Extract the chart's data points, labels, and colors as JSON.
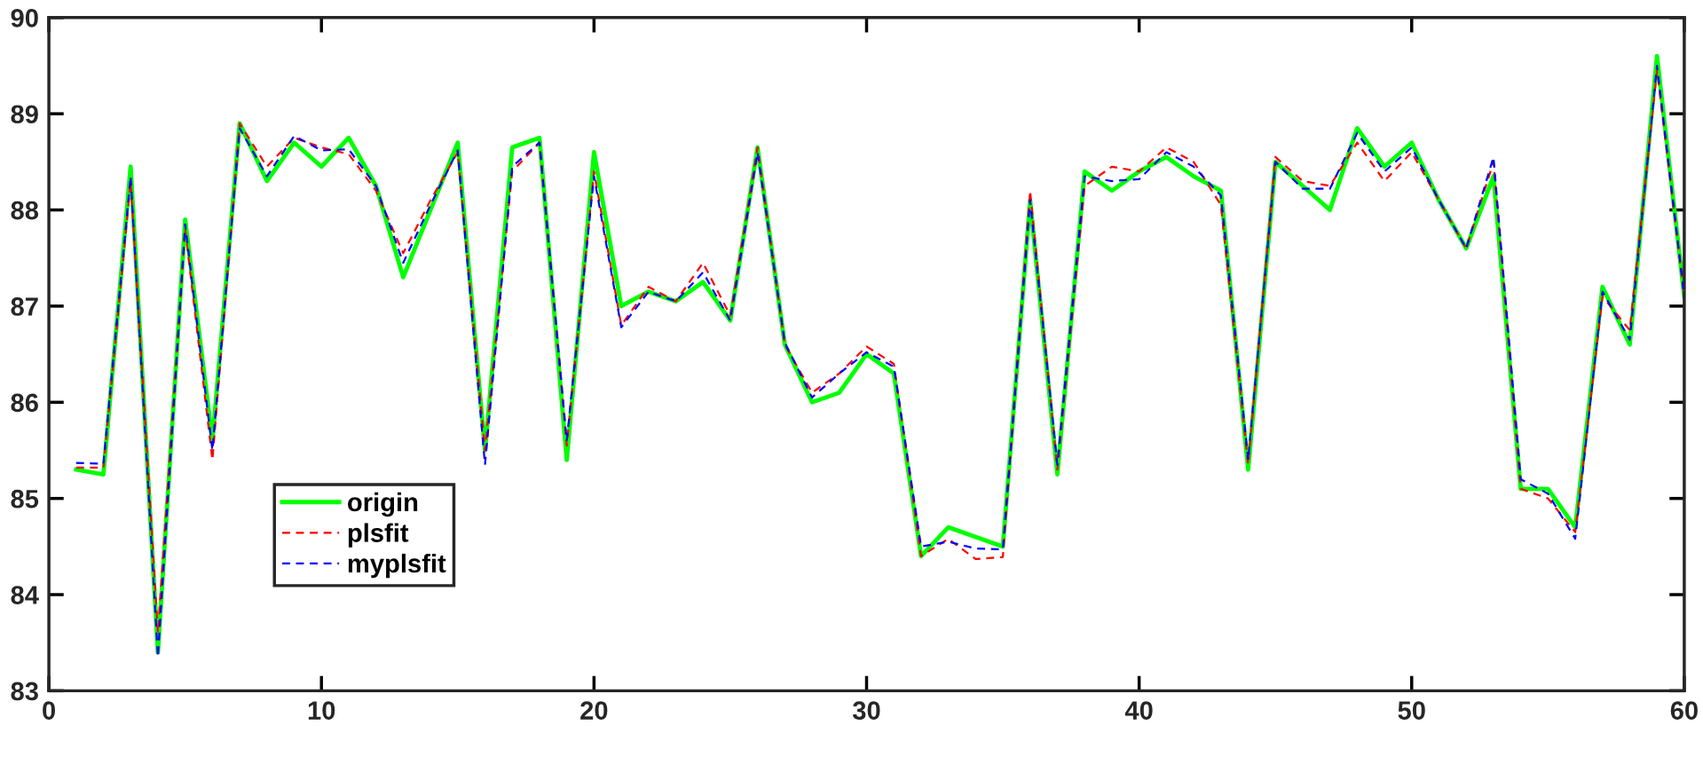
{
  "chart_data": {
    "type": "line",
    "x": [
      1,
      2,
      3,
      4,
      5,
      6,
      7,
      8,
      9,
      10,
      11,
      12,
      13,
      14,
      15,
      16,
      17,
      18,
      19,
      20,
      21,
      22,
      23,
      24,
      25,
      26,
      27,
      28,
      29,
      30,
      31,
      32,
      33,
      34,
      35,
      36,
      37,
      38,
      39,
      40,
      41,
      42,
      43,
      44,
      45,
      46,
      47,
      48,
      49,
      50,
      51,
      52,
      53,
      54,
      55,
      56,
      57,
      58,
      59,
      60
    ],
    "series": [
      {
        "name": "origin",
        "color": "#00ff00",
        "line_style": "solid",
        "values": [
          85.3,
          85.25,
          88.45,
          83.4,
          87.9,
          85.6,
          88.9,
          88.3,
          88.7,
          88.45,
          88.75,
          88.25,
          87.3,
          88.0,
          88.7,
          85.5,
          88.65,
          88.75,
          85.4,
          88.6,
          87.0,
          87.15,
          87.05,
          87.25,
          86.85,
          88.65,
          86.6,
          86.0,
          86.1,
          86.5,
          86.3,
          84.4,
          84.7,
          84.6,
          84.5,
          88.1,
          85.25,
          88.4,
          88.2,
          88.4,
          88.55,
          88.35,
          88.2,
          85.3,
          88.5,
          88.25,
          88.0,
          88.85,
          88.45,
          88.7,
          88.1,
          87.6,
          88.35,
          85.1,
          85.1,
          84.7,
          87.2,
          86.6,
          89.6,
          87.1
        ]
      },
      {
        "name": "plsfit",
        "color": "#ff0000",
        "line_style": "dashed",
        "values": [
          85.32,
          85.32,
          88.3,
          83.6,
          87.8,
          85.4,
          88.9,
          88.45,
          88.75,
          88.65,
          88.58,
          88.2,
          87.55,
          88.1,
          88.6,
          85.5,
          88.4,
          88.7,
          85.55,
          88.4,
          86.8,
          87.2,
          87.05,
          87.45,
          86.9,
          88.65,
          86.6,
          86.1,
          86.3,
          86.58,
          86.4,
          84.4,
          84.58,
          84.37,
          84.39,
          88.2,
          85.3,
          88.25,
          88.45,
          88.4,
          88.65,
          88.5,
          88.05,
          85.35,
          88.55,
          88.3,
          88.25,
          88.7,
          88.3,
          88.6,
          88.1,
          87.6,
          88.5,
          85.1,
          85.0,
          84.65,
          87.1,
          86.75,
          89.45,
          87.1
        ]
      },
      {
        "name": "myplsfit",
        "color": "#0000ff",
        "line_style": "dashed",
        "values": [
          85.37,
          85.36,
          88.35,
          83.35,
          87.85,
          85.5,
          88.85,
          88.35,
          88.77,
          88.62,
          88.63,
          88.25,
          87.45,
          88.05,
          88.62,
          85.35,
          88.45,
          88.7,
          85.6,
          88.35,
          86.78,
          87.15,
          87.05,
          87.35,
          86.85,
          88.6,
          86.62,
          86.05,
          86.3,
          86.52,
          86.37,
          84.5,
          84.55,
          84.48,
          84.47,
          88.1,
          85.35,
          88.35,
          88.3,
          88.32,
          88.6,
          88.45,
          88.15,
          85.4,
          88.5,
          88.22,
          88.22,
          88.8,
          88.4,
          88.65,
          88.1,
          87.6,
          88.55,
          85.2,
          85.05,
          84.58,
          87.15,
          86.65,
          89.5,
          87.1
        ]
      }
    ],
    "xlim": [
      0,
      60
    ],
    "xticks": [
      0,
      10,
      20,
      30,
      40,
      50,
      60
    ],
    "ylim": [
      83,
      90
    ],
    "yticks": [
      83,
      84,
      85,
      86,
      87,
      88,
      89,
      90
    ],
    "grid": false,
    "legend": "bottom left",
    "marker": "none"
  }
}
